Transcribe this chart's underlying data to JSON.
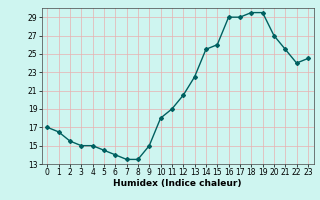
{
  "x": [
    0,
    1,
    2,
    3,
    4,
    5,
    6,
    7,
    8,
    9,
    10,
    11,
    12,
    13,
    14,
    15,
    16,
    17,
    18,
    19,
    20,
    21,
    22,
    23
  ],
  "y": [
    17,
    16.5,
    15.5,
    15,
    15,
    14.5,
    14,
    13.5,
    13.5,
    15,
    18,
    19,
    20.5,
    22.5,
    25.5,
    26,
    29,
    29,
    29.5,
    29.5,
    27,
    25.5,
    24,
    24.5
  ],
  "xlabel": "Humidex (Indice chaleur)",
  "ylim": [
    13,
    30
  ],
  "xlim": [
    -0.5,
    23.5
  ],
  "yticks": [
    13,
    15,
    17,
    19,
    21,
    23,
    25,
    27,
    29
  ],
  "xticks": [
    0,
    1,
    2,
    3,
    4,
    5,
    6,
    7,
    8,
    9,
    10,
    11,
    12,
    13,
    14,
    15,
    16,
    17,
    18,
    19,
    20,
    21,
    22,
    23
  ],
  "line_color": "#006060",
  "marker": "D",
  "marker_size": 2.0,
  "bg_color": "#cef5f0",
  "grid_color": "#e8b0b0",
  "line_width": 1.0,
  "label_fontsize": 6.5,
  "tick_fontsize": 5.5
}
